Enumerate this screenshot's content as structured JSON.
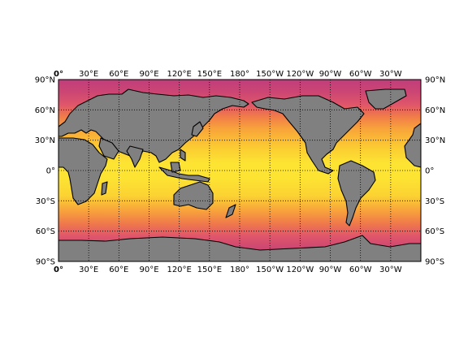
{
  "map": {
    "projection": "cylindrical equidistant",
    "lon_range": [
      0,
      360
    ],
    "lat_range": [
      -90,
      90
    ],
    "field": "ocean surface field (warm at equator, cool toward poles)",
    "colormap": [
      "#c13d7c",
      "#e0566a",
      "#f07a4a",
      "#f8a33b",
      "#fbc732",
      "#fde432"
    ],
    "land_color": "#808080",
    "coastline_color": "#000000",
    "graticule_style": "dotted"
  },
  "axes": {
    "lon_ticks": [
      "0°",
      "30°E",
      "60°E",
      "90°E",
      "120°E",
      "150°E",
      "180°",
      "150°W",
      "120°W",
      "90°W",
      "60°W",
      "30°W"
    ],
    "lat_ticks": [
      "90°S",
      "60°S",
      "30°S",
      "0°",
      "30°N",
      "60°N",
      "90°N"
    ]
  }
}
